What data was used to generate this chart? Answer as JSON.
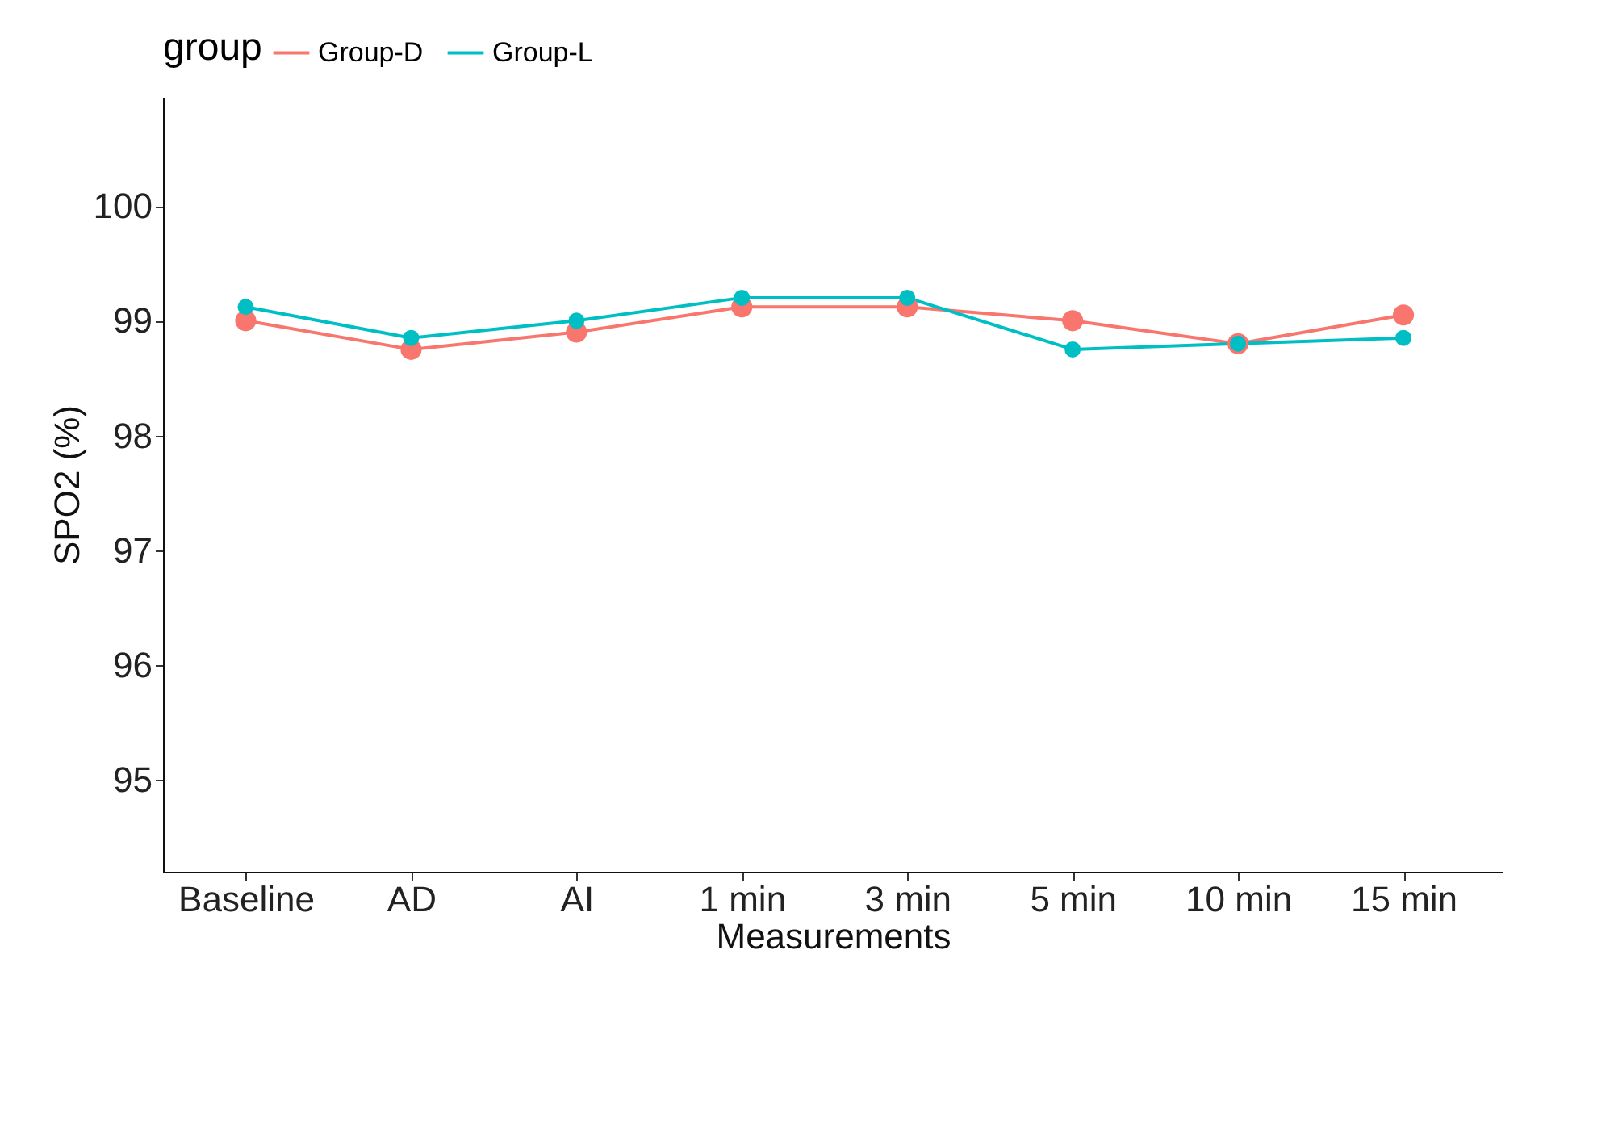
{
  "chart_data": {
    "type": "line",
    "xlabel": "Measurements",
    "ylabel": "SPO2 (%)",
    "legend_title": "group",
    "categories": [
      "Baseline",
      "AD",
      "AI",
      "1 min",
      "3 min",
      "5 min",
      "10 min",
      "15 min"
    ],
    "series": [
      {
        "name": "Group-D",
        "color": "#f8766d",
        "values": [
          99.0,
          98.75,
          98.9,
          99.12,
          99.12,
          99.0,
          98.8,
          99.05
        ]
      },
      {
        "name": "Group-L",
        "color": "#00bfc4",
        "values": [
          99.12,
          98.85,
          99.0,
          99.2,
          99.2,
          98.75,
          98.8,
          98.85
        ]
      }
    ],
    "ylim": [
      94.2,
      100.95
    ],
    "yticks": [
      95,
      96,
      97,
      98,
      99,
      100
    ],
    "grid": false,
    "legend": "top",
    "marker": "circle",
    "line_style": "solid"
  }
}
